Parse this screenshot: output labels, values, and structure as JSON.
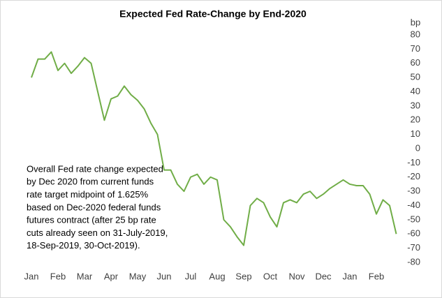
{
  "chart_data": {
    "type": "line",
    "title": "Expected Fed Rate-Change by End-2020",
    "y_axis_label": "bp",
    "annotation": [
      "Overall Fed rate change expected",
      "by Dec 2020  from current funds",
      "rate target midpoint of 1.625%",
      "based on Dec-2020 federal funds",
      "futures contract (after 25 bp rate",
      "cuts already seen on 31-July-2019,",
      "18-Sep-2019, 30-Oct-2019)."
    ],
    "categories": [
      "Jan",
      null,
      null,
      null,
      "Feb",
      null,
      null,
      null,
      "Mar",
      null,
      null,
      null,
      "Apr",
      null,
      null,
      null,
      "May",
      null,
      null,
      null,
      "Jun",
      null,
      null,
      null,
      "Jul",
      null,
      null,
      null,
      "Aug",
      null,
      null,
      null,
      "Sep",
      null,
      null,
      null,
      "Oct",
      null,
      null,
      null,
      "Nov",
      null,
      null,
      null,
      "Dec",
      null,
      null,
      null,
      "Jan",
      null,
      null,
      null,
      "Feb",
      null,
      null,
      null
    ],
    "series": [
      {
        "name": "Expected Fed rate change",
        "color": "#70ad47",
        "values": [
          50,
          63,
          63,
          68,
          55,
          60,
          53,
          58,
          64,
          60,
          40,
          20,
          35,
          37,
          44,
          38,
          34,
          28,
          18,
          10,
          -15,
          -15,
          -25,
          -30,
          -20,
          -18,
          -25,
          -20,
          -22,
          -50,
          -55,
          -62,
          -68,
          -40,
          -35,
          -38,
          -48,
          -55,
          -38,
          -36,
          -38,
          -32,
          -30,
          -35,
          -32,
          -28,
          -25,
          -22,
          -25,
          -26,
          -26,
          -32,
          -46,
          -36,
          -40,
          -60
        ]
      }
    ],
    "ylim": [
      -80,
      80
    ],
    "yticks": [
      -80,
      -70,
      -60,
      -50,
      -40,
      -30,
      -20,
      -10,
      0,
      10,
      20,
      30,
      40,
      50,
      60,
      70,
      80
    ],
    "grid": false
  }
}
